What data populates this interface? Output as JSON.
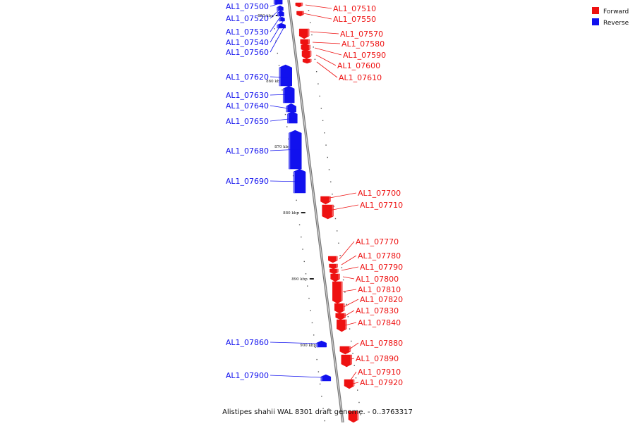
{
  "colors": {
    "forward": "#ee1111",
    "reverse": "#1111ee",
    "backbone": "#999999"
  },
  "legend": [
    {
      "label": "Forward",
      "color": "#ee1111"
    },
    {
      "label": "Reverse",
      "color": "#1111ee"
    }
  ],
  "caption": "Alistipes shahii WAL 8301 draft genome. - 0..3763317",
  "ticks": [
    "850 kbp",
    "860 kbp",
    "870 kbp",
    "880 kbp",
    "890 kbp",
    "900 kbp"
  ],
  "reverse_labels": [
    "AL1_07500",
    "AL1_07520",
    "AL1_07530",
    "AL1_07540",
    "AL1_07560",
    "AL1_07620",
    "AL1_07630",
    "AL1_07640",
    "AL1_07650",
    "AL1_07680",
    "AL1_07690",
    "AL1_07860",
    "AL1_07900"
  ],
  "forward_labels": [
    "AL1_07510",
    "AL1_07550",
    "AL1_07570",
    "AL1_07580",
    "AL1_07590",
    "AL1_07600",
    "AL1_07610",
    "AL1_07700",
    "AL1_07710",
    "AL1_07770",
    "AL1_07780",
    "AL1_07790",
    "AL1_07800",
    "AL1_07810",
    "AL1_07820",
    "AL1_07830",
    "AL1_07840",
    "AL1_07880",
    "AL1_07890",
    "AL1_07910",
    "AL1_07920"
  ]
}
